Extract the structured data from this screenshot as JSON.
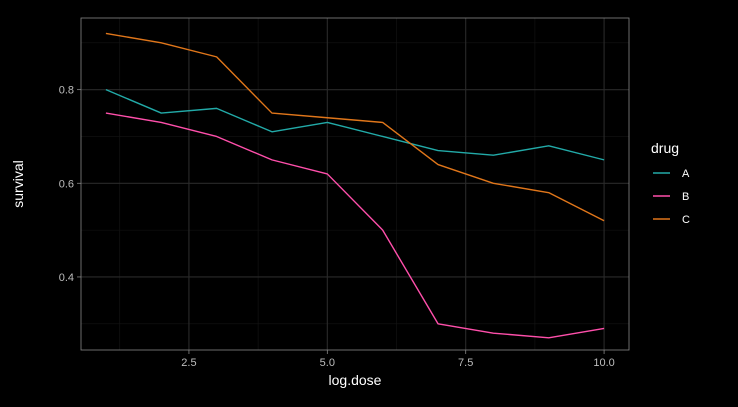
{
  "chart_data": {
    "type": "line",
    "title": "",
    "xlabel": "log.dose",
    "ylabel": "survival",
    "xlim": [
      0.55,
      10.45
    ],
    "ylim": [
      0.244,
      0.953
    ],
    "x_ticks": [
      2.5,
      5.0,
      7.5,
      10.0
    ],
    "x_tick_labels": [
      "2.5",
      "5.0",
      "7.5",
      "10.0"
    ],
    "y_ticks": [
      0.4,
      0.6,
      0.8
    ],
    "y_tick_labels": [
      "0.4",
      "0.6",
      "0.8"
    ],
    "grid": true,
    "legend": {
      "title": "drug",
      "position": "right"
    },
    "x": [
      1,
      2,
      3,
      4,
      5,
      6,
      7,
      8,
      9,
      10
    ],
    "series": [
      {
        "name": "A",
        "color": "#22aaa8",
        "values": [
          0.8,
          0.75,
          0.76,
          0.71,
          0.73,
          0.7,
          0.67,
          0.66,
          0.68,
          0.65
        ]
      },
      {
        "name": "B",
        "color": "#ff4fab",
        "values": [
          0.75,
          0.73,
          0.7,
          0.65,
          0.62,
          0.5,
          0.3,
          0.28,
          0.27,
          0.29
        ]
      },
      {
        "name": "C",
        "color": "#e0761a",
        "values": [
          0.92,
          0.9,
          0.87,
          0.75,
          0.74,
          0.73,
          0.64,
          0.6,
          0.58,
          0.52
        ]
      }
    ],
    "colors": {
      "background": "#000000",
      "panel_border": "#888888",
      "grid_major": "#2a2a2a",
      "grid_minor": "#151515",
      "text": "#ffffff",
      "tick_text": "#bdbdbd"
    }
  }
}
